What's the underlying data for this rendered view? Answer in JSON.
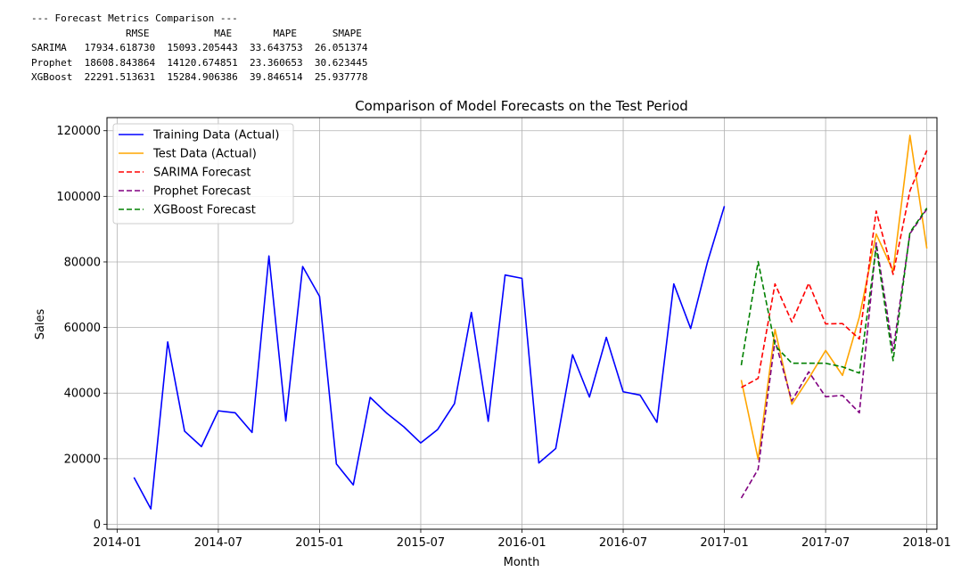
{
  "metrics_text": {
    "header": "--- Forecast Metrics Comparison ---",
    "columns": "                RMSE           MAE       MAPE      SMAPE",
    "rows": [
      "SARIMA   17934.618730  15093.205443  33.643753  26.051374",
      "Prophet  18608.843864  14120.674851  23.360653  30.623445",
      "XGBoost  22291.513631  15284.906386  39.846514  25.937778"
    ]
  },
  "metrics_table": {
    "columns": [
      "RMSE",
      "MAE",
      "MAPE",
      "SMAPE"
    ],
    "rows": [
      {
        "model": "SARIMA",
        "values": [
          17934.61873,
          15093.205443,
          33.643753,
          26.051374
        ]
      },
      {
        "model": "Prophet",
        "values": [
          18608.843864,
          14120.674851,
          23.360653,
          30.623445
        ]
      },
      {
        "model": "XGBoost",
        "values": [
          22291.513631,
          15284.906386,
          39.846514,
          25.937778
        ]
      }
    ]
  },
  "chart_data": {
    "type": "line",
    "title": "Comparison of Model Forecasts on the Test Period",
    "xlabel": "Month",
    "ylabel": "Sales",
    "ylim": [
      -1500,
      124000
    ],
    "xlim_months": [
      -0.6,
      48.6
    ],
    "x_month_origin": "2014-01",
    "grid": true,
    "legend_position": "upper-left",
    "x_ticks": [
      {
        "label": "2014-01",
        "m": 0
      },
      {
        "label": "2014-07",
        "m": 6
      },
      {
        "label": "2015-01",
        "m": 12
      },
      {
        "label": "2015-07",
        "m": 18
      },
      {
        "label": "2016-01",
        "m": 24
      },
      {
        "label": "2016-07",
        "m": 30
      },
      {
        "label": "2017-01",
        "m": 36
      },
      {
        "label": "2017-07",
        "m": 42
      },
      {
        "label": "2018-01",
        "m": 48
      }
    ],
    "y_ticks": [
      0,
      20000,
      40000,
      60000,
      80000,
      100000,
      120000
    ],
    "y_tick_labels": [
      "0",
      "20000",
      "40000",
      "60000",
      "80000",
      "100000",
      "120000"
    ],
    "series": [
      {
        "name": "Training Data (Actual)",
        "color": "#0000ff",
        "dash": "solid",
        "start_month": 1,
        "values": [
          14300,
          4700,
          55600,
          28400,
          23700,
          34600,
          34000,
          28000,
          81800,
          31500,
          78600,
          69500,
          18400,
          12000,
          38700,
          33800,
          29700,
          24800,
          28900,
          36800,
          64600,
          31400,
          76000,
          75000,
          18700,
          23100,
          51700,
          38800,
          57000,
          40400,
          39400,
          31100,
          73300,
          59700,
          80000,
          97000
        ]
      },
      {
        "name": "Test Data (Actual)",
        "color": "#ffa500",
        "dash": "solid",
        "start_month": 37,
        "values": [
          44000,
          19800,
          59400,
          36600,
          44500,
          53000,
          45400,
          63200,
          88500,
          77200,
          118600,
          84100
        ]
      },
      {
        "name": "SARIMA Forecast",
        "color": "#ff0000",
        "dash": "dashed",
        "start_month": 37,
        "values": [
          41700,
          44500,
          73300,
          61700,
          73500,
          61100,
          61200,
          56500,
          95500,
          76200,
          101700,
          114000
        ]
      },
      {
        "name": "Prophet Forecast",
        "color": "#800080",
        "dash": "dashed",
        "start_month": 37,
        "values": [
          8000,
          16800,
          56100,
          37600,
          46500,
          38900,
          39300,
          34000,
          85800,
          53000,
          88600,
          96100
        ]
      },
      {
        "name": "XGBoost Forecast",
        "color": "#008000",
        "dash": "dashed",
        "start_month": 37,
        "values": [
          48500,
          80100,
          54500,
          49100,
          49100,
          49100,
          48000,
          46100,
          84500,
          49900,
          89000,
          96400
        ]
      }
    ]
  }
}
